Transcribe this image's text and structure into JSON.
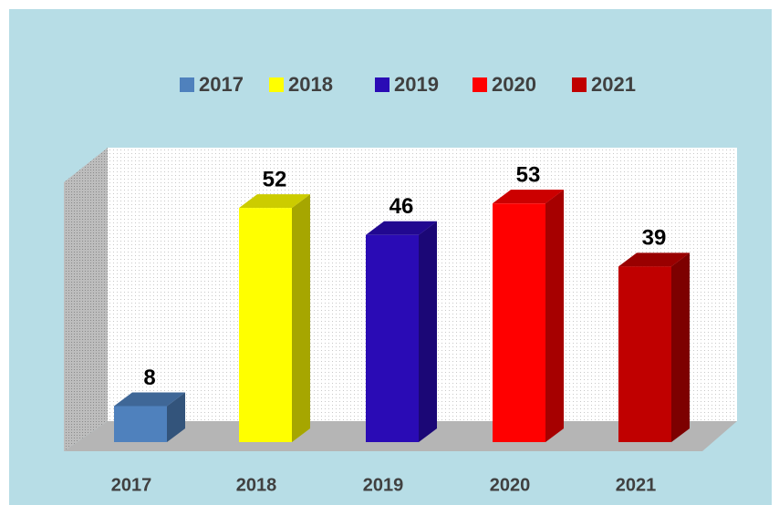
{
  "chart_data": {
    "type": "bar3d",
    "categories": [
      "2017",
      "2018",
      "2019",
      "2020",
      "2021"
    ],
    "values": [
      8,
      52,
      46,
      53,
      39
    ],
    "colors": [
      "#4f81bd",
      "#ffff00",
      "#2a0bb5",
      "#ff0000",
      "#c00000"
    ],
    "ylim": [
      0,
      60
    ]
  }
}
